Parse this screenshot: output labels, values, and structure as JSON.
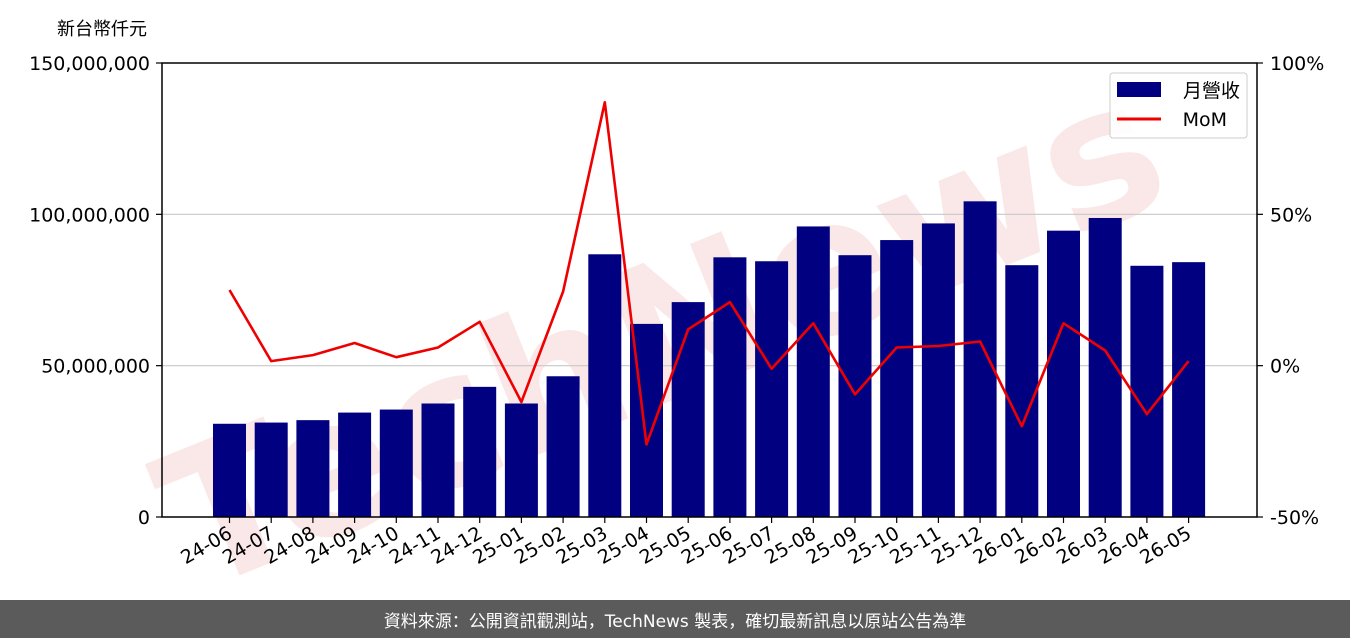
{
  "unit_label": "新台幣仟元",
  "footer_text": "資料來源：公開資訊觀測站，TechNews 製表，確切最新訊息以原站公告為準",
  "watermark_text": "TechNews",
  "colors": {
    "bars": "#000080",
    "line": "#ee0000",
    "footer_bg": "#5b5b5b",
    "watermark": "#f5d5d5"
  },
  "chart_data": {
    "type": "bar",
    "categories": [
      "24-06",
      "24-07",
      "24-08",
      "24-09",
      "24-10",
      "24-11",
      "24-12",
      "25-01",
      "25-02",
      "25-03",
      "25-04",
      "25-05",
      "25-06",
      "25-07",
      "25-08",
      "25-09",
      "25-10",
      "25-11",
      "25-12",
      "26-01",
      "26-02",
      "26-03",
      "26-04",
      "26-05"
    ],
    "series": [
      {
        "name": "月營收",
        "type": "bar",
        "axis": "left",
        "values": [
          30800000,
          31200000,
          32000000,
          34500000,
          35500000,
          37500000,
          43000000,
          37500000,
          46500000,
          86800000,
          63800000,
          71000000,
          85800000,
          84500000,
          96000000,
          86500000,
          91500000,
          97000000,
          104300000,
          83200000,
          94600000,
          98800000,
          83000000,
          84200000
        ]
      },
      {
        "name": "MoM",
        "type": "line",
        "axis": "right",
        "values": [
          25,
          1.5,
          3.5,
          7.5,
          2.8,
          6,
          14.5,
          -12,
          24.5,
          87,
          -26,
          12,
          21,
          -1,
          14,
          -9.5,
          6,
          6.5,
          8,
          -20,
          14,
          5,
          -16,
          1.5
        ]
      }
    ],
    "y_left": {
      "ylim": [
        0,
        150000000
      ],
      "ticks": [
        0,
        50000000,
        100000000,
        150000000
      ],
      "tick_labels": [
        "0",
        "50,000,000",
        "100,000,000",
        "150,000,000"
      ]
    },
    "y_right": {
      "ylim": [
        -50,
        100
      ],
      "ticks": [
        -50,
        0,
        50,
        100
      ],
      "tick_labels": [
        "-50%",
        "0%",
        "50%",
        "100%"
      ]
    },
    "grid": "horizontal",
    "legend": {
      "position": "top-right",
      "entries": [
        "月營收",
        "MoM"
      ]
    }
  }
}
